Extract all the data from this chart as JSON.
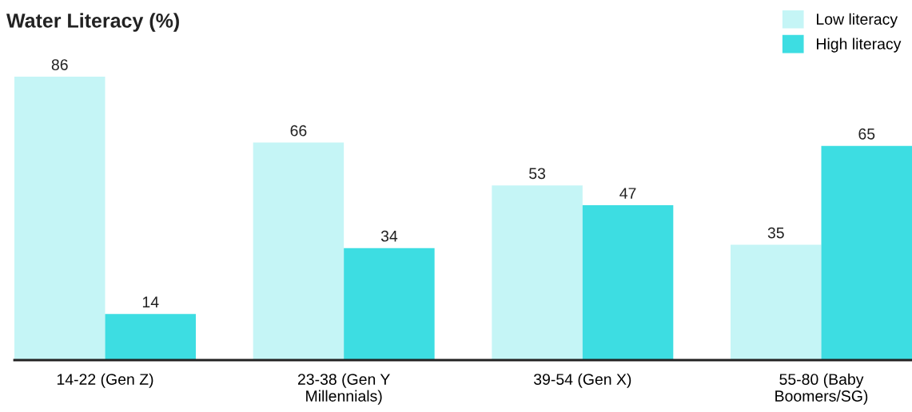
{
  "chart_data": {
    "type": "bar",
    "title": "Water Literacy (%)",
    "categories": [
      "14-22 (Gen Z)",
      "23-38 (Gen Y\nMillennials)",
      "39-54 (Gen X)",
      "55-80 (Baby\nBoomers/SG)"
    ],
    "series": [
      {
        "name": "Low literacy",
        "color": "#c5f5f6",
        "values": [
          86,
          66,
          53,
          35
        ]
      },
      {
        "name": "High literacy",
        "color": "#3ddde2",
        "values": [
          14,
          34,
          47,
          65
        ]
      }
    ],
    "tick_labels": "x",
    "data_labels": true,
    "legend": "top right",
    "grid": false
  }
}
